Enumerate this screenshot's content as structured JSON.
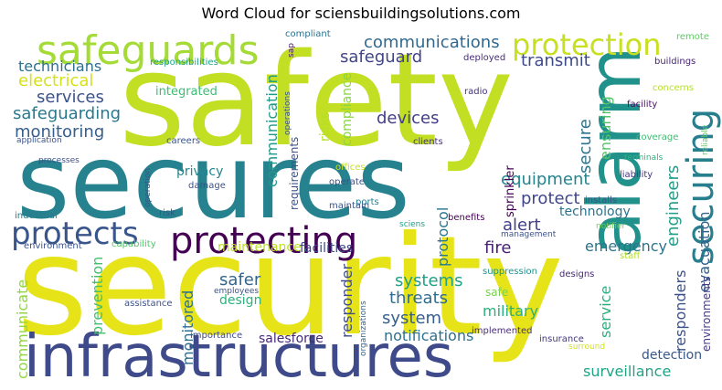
{
  "title": "Word Cloud for sciensbuildingsolutions.com",
  "words": [
    {
      "text": "security",
      "color": "#e6e419"
    },
    {
      "text": "secures",
      "color": "#26828e"
    },
    {
      "text": "safety",
      "color": "#c2df23"
    },
    {
      "text": "infrastructures",
      "color": "#3e4a89"
    },
    {
      "text": "protecting",
      "color": "#440154"
    },
    {
      "text": "alarm",
      "color": "#21918c"
    },
    {
      "text": "safeguards",
      "color": "#a5db36"
    },
    {
      "text": "protection",
      "color": "#c8e020"
    },
    {
      "text": "securing",
      "color": "#277f8e"
    },
    {
      "text": "protects",
      "color": "#39568c"
    },
    {
      "text": "communications",
      "color": "#31688e"
    },
    {
      "text": "technicians",
      "color": "#2d708e"
    },
    {
      "text": "electrical",
      "color": "#d5e21a"
    },
    {
      "text": "services",
      "color": "#3b528b"
    },
    {
      "text": "safeguarding",
      "color": "#2a788e"
    },
    {
      "text": "safeguard",
      "color": "#414487"
    },
    {
      "text": "transmit",
      "color": "#3e4989"
    },
    {
      "text": "monitoring",
      "color": "#355f8d"
    },
    {
      "text": "integrated",
      "color": "#3fbc73"
    },
    {
      "text": "devices",
      "color": "#433e85"
    },
    {
      "text": "communication",
      "color": "#1f998a"
    },
    {
      "text": "secure",
      "color": "#2b758e"
    },
    {
      "text": "ensuring",
      "color": "#52c569"
    },
    {
      "text": "engineers",
      "color": "#1f9e89"
    },
    {
      "text": "equipment",
      "color": "#25848e"
    },
    {
      "text": "privacy",
      "color": "#24868e"
    },
    {
      "text": "risks",
      "color": "#b5de2b"
    },
    {
      "text": "compliance",
      "color": "#89d548"
    },
    {
      "text": "requirements",
      "color": "#3b528b"
    },
    {
      "text": "protect",
      "color": "#3f4788"
    },
    {
      "text": "technology",
      "color": "#2c728e"
    },
    {
      "text": "alert",
      "color": "#424086"
    },
    {
      "text": "evacuation",
      "color": "#33638d"
    },
    {
      "text": "fire",
      "color": "#482173"
    },
    {
      "text": "emergency",
      "color": "#2c728e"
    },
    {
      "text": "prevention",
      "color": "#44bf70"
    },
    {
      "text": "communicate",
      "color": "#90d743"
    },
    {
      "text": "maintenance",
      "color": "#bddf26"
    },
    {
      "text": "facilities",
      "color": "#3e4a89"
    },
    {
      "text": "monitored",
      "color": "#2e6e8e"
    },
    {
      "text": "safer",
      "color": "#32658e"
    },
    {
      "text": "design",
      "color": "#2db27d"
    },
    {
      "text": "systems",
      "color": "#1fa088"
    },
    {
      "text": "threats",
      "color": "#2f6c8e"
    },
    {
      "text": "system",
      "color": "#355f8d"
    },
    {
      "text": "military",
      "color": "#29af7f"
    },
    {
      "text": "safe",
      "color": "#7ad151"
    },
    {
      "text": "protocol",
      "color": "#2a788e"
    },
    {
      "text": "responder",
      "color": "#3e4c8a"
    },
    {
      "text": "service",
      "color": "#2ab07f"
    },
    {
      "text": "responders",
      "color": "#3b528b"
    },
    {
      "text": "environments",
      "color": "#443a83"
    },
    {
      "text": "notifications",
      "color": "#2e6f8e"
    },
    {
      "text": "salesforce",
      "color": "#482878"
    },
    {
      "text": "detection",
      "color": "#38588c"
    },
    {
      "text": "surveillance",
      "color": "#20a386"
    },
    {
      "text": "sprinkler",
      "color": "#440154"
    },
    {
      "text": "radio",
      "color": "#46307e"
    },
    {
      "text": "deployed",
      "color": "#472d7b"
    },
    {
      "text": "compliant",
      "color": "#2c728e"
    },
    {
      "text": "responsibilities",
      "color": "#1fa188"
    },
    {
      "text": "sap",
      "color": "#481467"
    },
    {
      "text": "operations",
      "color": "#3b528b"
    },
    {
      "text": "coverage",
      "color": "#3fbc73"
    },
    {
      "text": "liability",
      "color": "#463480"
    },
    {
      "text": "facility",
      "color": "#471063"
    },
    {
      "text": "concerns",
      "color": "#b5de2b"
    },
    {
      "text": "reliable",
      "color": "#5ec962"
    },
    {
      "text": "terminals",
      "color": "#2db27d"
    },
    {
      "text": "remote",
      "color": "#5ec962"
    },
    {
      "text": "buildings",
      "color": "#482475"
    },
    {
      "text": "clients",
      "color": "#46337e"
    },
    {
      "text": "offices",
      "color": "#c8e020"
    },
    {
      "text": "operate",
      "color": "#3b528b"
    },
    {
      "text": "ports",
      "color": "#26818e"
    },
    {
      "text": "maintain",
      "color": "#3b528b"
    },
    {
      "text": "sciens",
      "color": "#1fa188"
    },
    {
      "text": "benefits",
      "color": "#440154"
    },
    {
      "text": "installs",
      "color": "#3b528b"
    },
    {
      "text": "management",
      "color": "#3b528b"
    },
    {
      "text": "notifier",
      "color": "#6ece58"
    },
    {
      "text": "staff",
      "color": "#b5de2b"
    },
    {
      "text": "suppression",
      "color": "#21918c"
    },
    {
      "text": "designs",
      "color": "#482878"
    },
    {
      "text": "implemented",
      "color": "#472c7a"
    },
    {
      "text": "organizations",
      "color": "#31688e"
    },
    {
      "text": "insurance",
      "color": "#453781"
    },
    {
      "text": "surround",
      "color": "#d5e21a"
    },
    {
      "text": "importance",
      "color": "#3e4a89"
    },
    {
      "text": "employees",
      "color": "#3b528b"
    },
    {
      "text": "assistance",
      "color": "#3b528b"
    },
    {
      "text": "capability",
      "color": "#52c569"
    },
    {
      "text": "environment",
      "color": "#3b528b"
    },
    {
      "text": "industrial",
      "color": "#287c8e"
    },
    {
      "text": "risk",
      "color": "#3b528b"
    },
    {
      "text": "operation",
      "color": "#3b528b"
    },
    {
      "text": "damage",
      "color": "#3b528b"
    },
    {
      "text": "processes",
      "color": "#3b528b"
    },
    {
      "text": "application",
      "color": "#3b528b"
    },
    {
      "text": "careers",
      "color": "#3b528b"
    }
  ]
}
